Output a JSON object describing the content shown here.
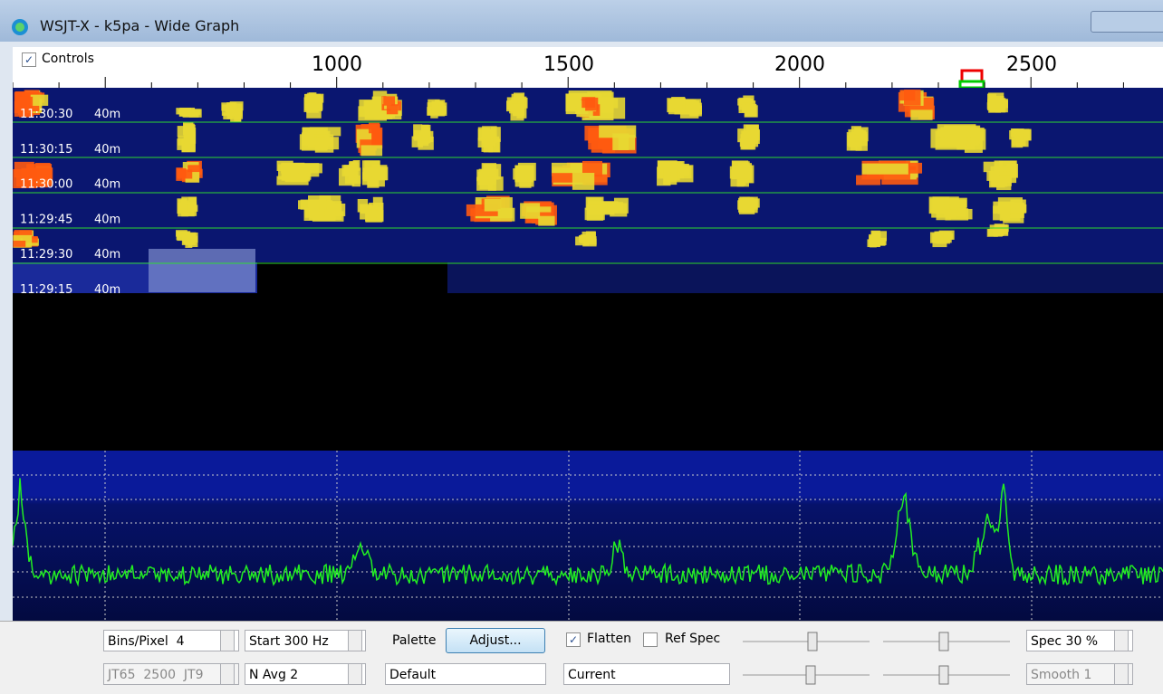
{
  "window": {
    "title": "WSJT-X - k5pa - Wide Graph"
  },
  "header": {
    "controls_checkbox": "Controls",
    "scale_labels": [
      "1000",
      "1500",
      "2000",
      "2500"
    ]
  },
  "waterfall": {
    "rows": [
      {
        "time": "11:30:30",
        "band": "40m"
      },
      {
        "time": "11:30:15",
        "band": "40m"
      },
      {
        "time": "11:30:00",
        "band": "40m"
      },
      {
        "time": "11:29:45",
        "band": "40m"
      },
      {
        "time": "11:29:30",
        "band": "40m"
      },
      {
        "time": "11:29:15",
        "band": "40m"
      }
    ]
  },
  "controls": {
    "bins_pixel_label": "Bins/Pixel",
    "bins_pixel_value": "4",
    "start": "Start 300 Hz",
    "mode": "JT65  2500  JT9",
    "n_avg": "N Avg 2",
    "palette_label": "Palette",
    "adjust_button": "Adjust...",
    "palette_select": "Default",
    "flatten": "Flatten",
    "ref_spec": "Ref Spec",
    "spectrum_select": "Current",
    "spec": "Spec 30 %",
    "smooth": "Smooth 1"
  }
}
